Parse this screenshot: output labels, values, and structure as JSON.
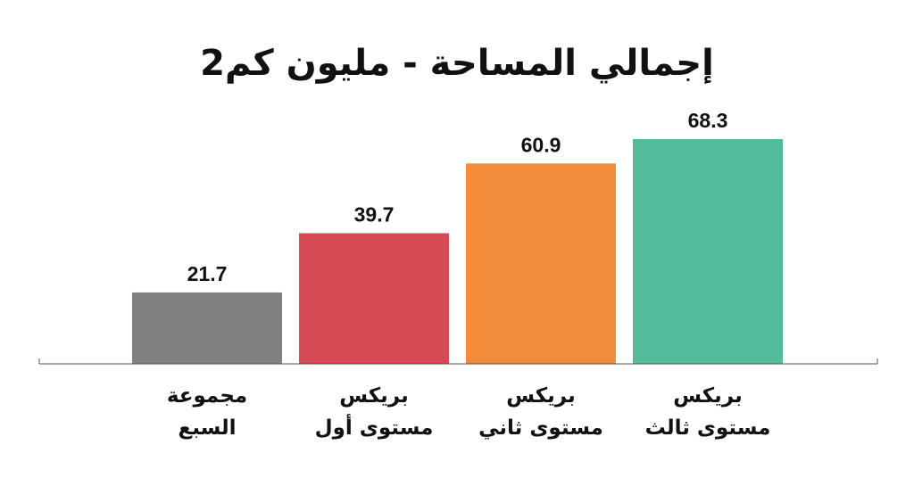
{
  "chart_data": {
    "type": "bar",
    "title": "إجمالي المساحة - مليون كم2",
    "xlabel": "",
    "ylabel": "",
    "categories": [
      [
        "مجموعة",
        "السبع"
      ],
      [
        "بريكس",
        "مستوى أول"
      ],
      [
        "بريكس",
        "مستوى ثاني"
      ],
      [
        "بريكس",
        "مستوى ثالث"
      ]
    ],
    "values": [
      21.7,
      39.7,
      60.9,
      68.3
    ],
    "value_labels": [
      "21.7",
      "39.7",
      "60.9",
      "68.3"
    ],
    "colors": [
      "#808083",
      "#d64a55",
      "#f28c3a",
      "#52bc9c"
    ],
    "ylim": [
      0,
      80
    ],
    "grid": false,
    "legend": "none"
  }
}
